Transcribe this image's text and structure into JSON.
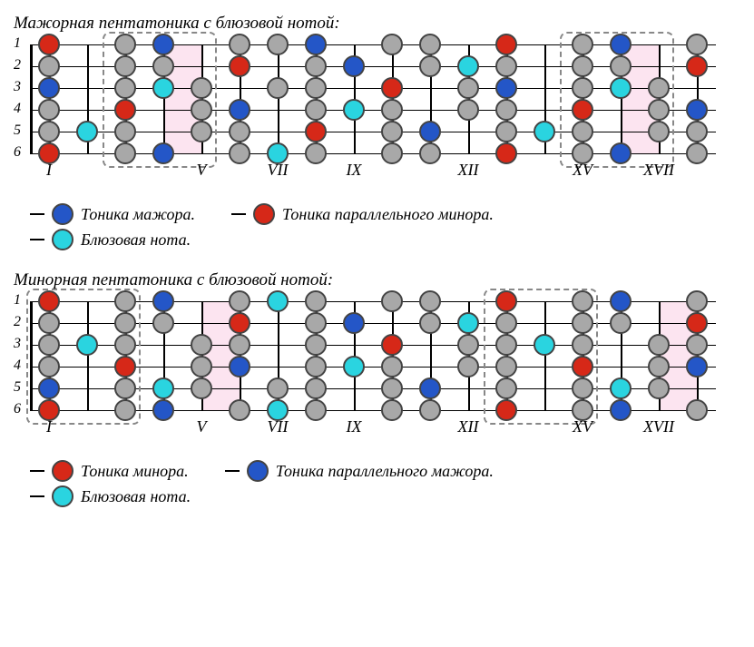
{
  "colors": {
    "blue": "#2456c7",
    "red": "#d62818",
    "cyan": "#2ad4e0",
    "gray": "#a8a8a8",
    "pink": "#fce4f0",
    "border": "#555555"
  },
  "layout": {
    "string_spacing": 24,
    "fret_width": 42,
    "num_strings": 6,
    "num_frets": 18,
    "dot_radius": 10
  },
  "diagrams": [
    {
      "title": "Мажорная пентатоника с блюзовой нотой:",
      "pink_zones": [
        [
          4,
          5
        ],
        [
          16,
          17
        ]
      ],
      "dashed_boxes": [
        [
          3,
          5
        ],
        [
          15,
          17
        ]
      ],
      "fret_labels": {
        "1": "I",
        "5": "V",
        "7": "VII",
        "9": "IX",
        "12": "XII",
        "15": "XV",
        "17": "XVII"
      },
      "dots": [
        [
          1,
          1,
          "red"
        ],
        [
          1,
          3,
          "gray"
        ],
        [
          1,
          4,
          "blue"
        ],
        [
          1,
          6,
          "gray"
        ],
        [
          1,
          7,
          "gray"
        ],
        [
          1,
          8,
          "blue"
        ],
        [
          1,
          10,
          "gray"
        ],
        [
          1,
          11,
          "gray"
        ],
        [
          1,
          13,
          "red"
        ],
        [
          1,
          15,
          "gray"
        ],
        [
          1,
          16,
          "blue"
        ],
        [
          1,
          18,
          "gray"
        ],
        [
          2,
          1,
          "gray"
        ],
        [
          2,
          3,
          "gray"
        ],
        [
          2,
          4,
          "gray"
        ],
        [
          2,
          6,
          "red"
        ],
        [
          2,
          8,
          "gray"
        ],
        [
          2,
          9,
          "blue"
        ],
        [
          2,
          11,
          "gray"
        ],
        [
          2,
          12,
          "cyan"
        ],
        [
          2,
          13,
          "gray"
        ],
        [
          2,
          15,
          "gray"
        ],
        [
          2,
          16,
          "gray"
        ],
        [
          2,
          18,
          "red"
        ],
        [
          3,
          1,
          "blue"
        ],
        [
          3,
          3,
          "gray"
        ],
        [
          3,
          4,
          "cyan"
        ],
        [
          3,
          5,
          "gray"
        ],
        [
          3,
          7,
          "gray"
        ],
        [
          3,
          8,
          "gray"
        ],
        [
          3,
          10,
          "red"
        ],
        [
          3,
          12,
          "gray"
        ],
        [
          3,
          13,
          "blue"
        ],
        [
          3,
          15,
          "gray"
        ],
        [
          3,
          16,
          "cyan"
        ],
        [
          3,
          17,
          "gray"
        ],
        [
          4,
          1,
          "gray"
        ],
        [
          4,
          3,
          "red"
        ],
        [
          4,
          5,
          "gray"
        ],
        [
          4,
          6,
          "blue"
        ],
        [
          4,
          8,
          "gray"
        ],
        [
          4,
          9,
          "cyan"
        ],
        [
          4,
          10,
          "gray"
        ],
        [
          4,
          12,
          "gray"
        ],
        [
          4,
          13,
          "gray"
        ],
        [
          4,
          15,
          "red"
        ],
        [
          4,
          17,
          "gray"
        ],
        [
          4,
          18,
          "blue"
        ],
        [
          5,
          1,
          "gray"
        ],
        [
          5,
          2,
          "cyan"
        ],
        [
          5,
          3,
          "gray"
        ],
        [
          5,
          5,
          "gray"
        ],
        [
          5,
          6,
          "gray"
        ],
        [
          5,
          8,
          "red"
        ],
        [
          5,
          10,
          "gray"
        ],
        [
          5,
          11,
          "blue"
        ],
        [
          5,
          13,
          "gray"
        ],
        [
          5,
          14,
          "cyan"
        ],
        [
          5,
          15,
          "gray"
        ],
        [
          5,
          17,
          "gray"
        ],
        [
          5,
          18,
          "gray"
        ],
        [
          6,
          1,
          "red"
        ],
        [
          6,
          3,
          "gray"
        ],
        [
          6,
          4,
          "blue"
        ],
        [
          6,
          6,
          "gray"
        ],
        [
          6,
          7,
          "cyan"
        ],
        [
          6,
          8,
          "gray"
        ],
        [
          6,
          10,
          "gray"
        ],
        [
          6,
          11,
          "gray"
        ],
        [
          6,
          13,
          "red"
        ],
        [
          6,
          15,
          "gray"
        ],
        [
          6,
          16,
          "blue"
        ],
        [
          6,
          18,
          "gray"
        ]
      ],
      "legend": [
        [
          [
            "blue",
            "Тоника мажора."
          ],
          [
            "red",
            "Тоника параллельного минора."
          ]
        ],
        [
          [
            "cyan",
            "Блюзовая нота."
          ]
        ]
      ]
    },
    {
      "title": "Минорная пентатоника с блюзовой нотой:",
      "pink_zones": [
        [
          5,
          6
        ],
        [
          17,
          18
        ]
      ],
      "dashed_boxes": [
        [
          1,
          3
        ],
        [
          13,
          15
        ]
      ],
      "fret_labels": {
        "1": "I",
        "5": "V",
        "7": "VII",
        "9": "IX",
        "12": "XII",
        "15": "XV",
        "17": "XVII"
      },
      "dots": [
        [
          1,
          1,
          "red"
        ],
        [
          1,
          3,
          "gray"
        ],
        [
          1,
          4,
          "blue"
        ],
        [
          1,
          6,
          "gray"
        ],
        [
          1,
          7,
          "cyan"
        ],
        [
          1,
          8,
          "gray"
        ],
        [
          1,
          10,
          "gray"
        ],
        [
          1,
          11,
          "gray"
        ],
        [
          1,
          13,
          "red"
        ],
        [
          1,
          15,
          "gray"
        ],
        [
          1,
          16,
          "blue"
        ],
        [
          1,
          18,
          "gray"
        ],
        [
          2,
          1,
          "gray"
        ],
        [
          2,
          3,
          "gray"
        ],
        [
          2,
          4,
          "gray"
        ],
        [
          2,
          6,
          "red"
        ],
        [
          2,
          8,
          "gray"
        ],
        [
          2,
          9,
          "blue"
        ],
        [
          2,
          11,
          "gray"
        ],
        [
          2,
          12,
          "cyan"
        ],
        [
          2,
          13,
          "gray"
        ],
        [
          2,
          15,
          "gray"
        ],
        [
          2,
          16,
          "gray"
        ],
        [
          2,
          18,
          "red"
        ],
        [
          3,
          1,
          "gray"
        ],
        [
          3,
          2,
          "cyan"
        ],
        [
          3,
          3,
          "gray"
        ],
        [
          3,
          5,
          "gray"
        ],
        [
          3,
          6,
          "gray"
        ],
        [
          3,
          8,
          "gray"
        ],
        [
          3,
          10,
          "red"
        ],
        [
          3,
          12,
          "gray"
        ],
        [
          3,
          13,
          "gray"
        ],
        [
          3,
          14,
          "cyan"
        ],
        [
          3,
          15,
          "gray"
        ],
        [
          3,
          17,
          "gray"
        ],
        [
          3,
          18,
          "gray"
        ],
        [
          4,
          1,
          "gray"
        ],
        [
          4,
          3,
          "red"
        ],
        [
          4,
          5,
          "gray"
        ],
        [
          4,
          6,
          "blue"
        ],
        [
          4,
          8,
          "gray"
        ],
        [
          4,
          9,
          "cyan"
        ],
        [
          4,
          10,
          "gray"
        ],
        [
          4,
          12,
          "gray"
        ],
        [
          4,
          13,
          "gray"
        ],
        [
          4,
          15,
          "red"
        ],
        [
          4,
          17,
          "gray"
        ],
        [
          4,
          18,
          "blue"
        ],
        [
          5,
          1,
          "blue"
        ],
        [
          5,
          3,
          "gray"
        ],
        [
          5,
          4,
          "cyan"
        ],
        [
          5,
          5,
          "gray"
        ],
        [
          5,
          7,
          "gray"
        ],
        [
          5,
          8,
          "gray"
        ],
        [
          5,
          10,
          "gray"
        ],
        [
          5,
          11,
          "blue"
        ],
        [
          5,
          13,
          "gray"
        ],
        [
          5,
          15,
          "gray"
        ],
        [
          5,
          16,
          "cyan"
        ],
        [
          5,
          17,
          "gray"
        ],
        [
          6,
          1,
          "red"
        ],
        [
          6,
          3,
          "gray"
        ],
        [
          6,
          4,
          "blue"
        ],
        [
          6,
          6,
          "gray"
        ],
        [
          6,
          7,
          "cyan"
        ],
        [
          6,
          8,
          "gray"
        ],
        [
          6,
          10,
          "gray"
        ],
        [
          6,
          11,
          "gray"
        ],
        [
          6,
          13,
          "red"
        ],
        [
          6,
          15,
          "gray"
        ],
        [
          6,
          16,
          "blue"
        ],
        [
          6,
          18,
          "gray"
        ]
      ],
      "legend": [
        [
          [
            "red",
            "Тоника минора."
          ],
          [
            "blue",
            "Тоника параллельного мажора."
          ]
        ],
        [
          [
            "cyan",
            "Блюзовая нота."
          ]
        ]
      ]
    }
  ]
}
